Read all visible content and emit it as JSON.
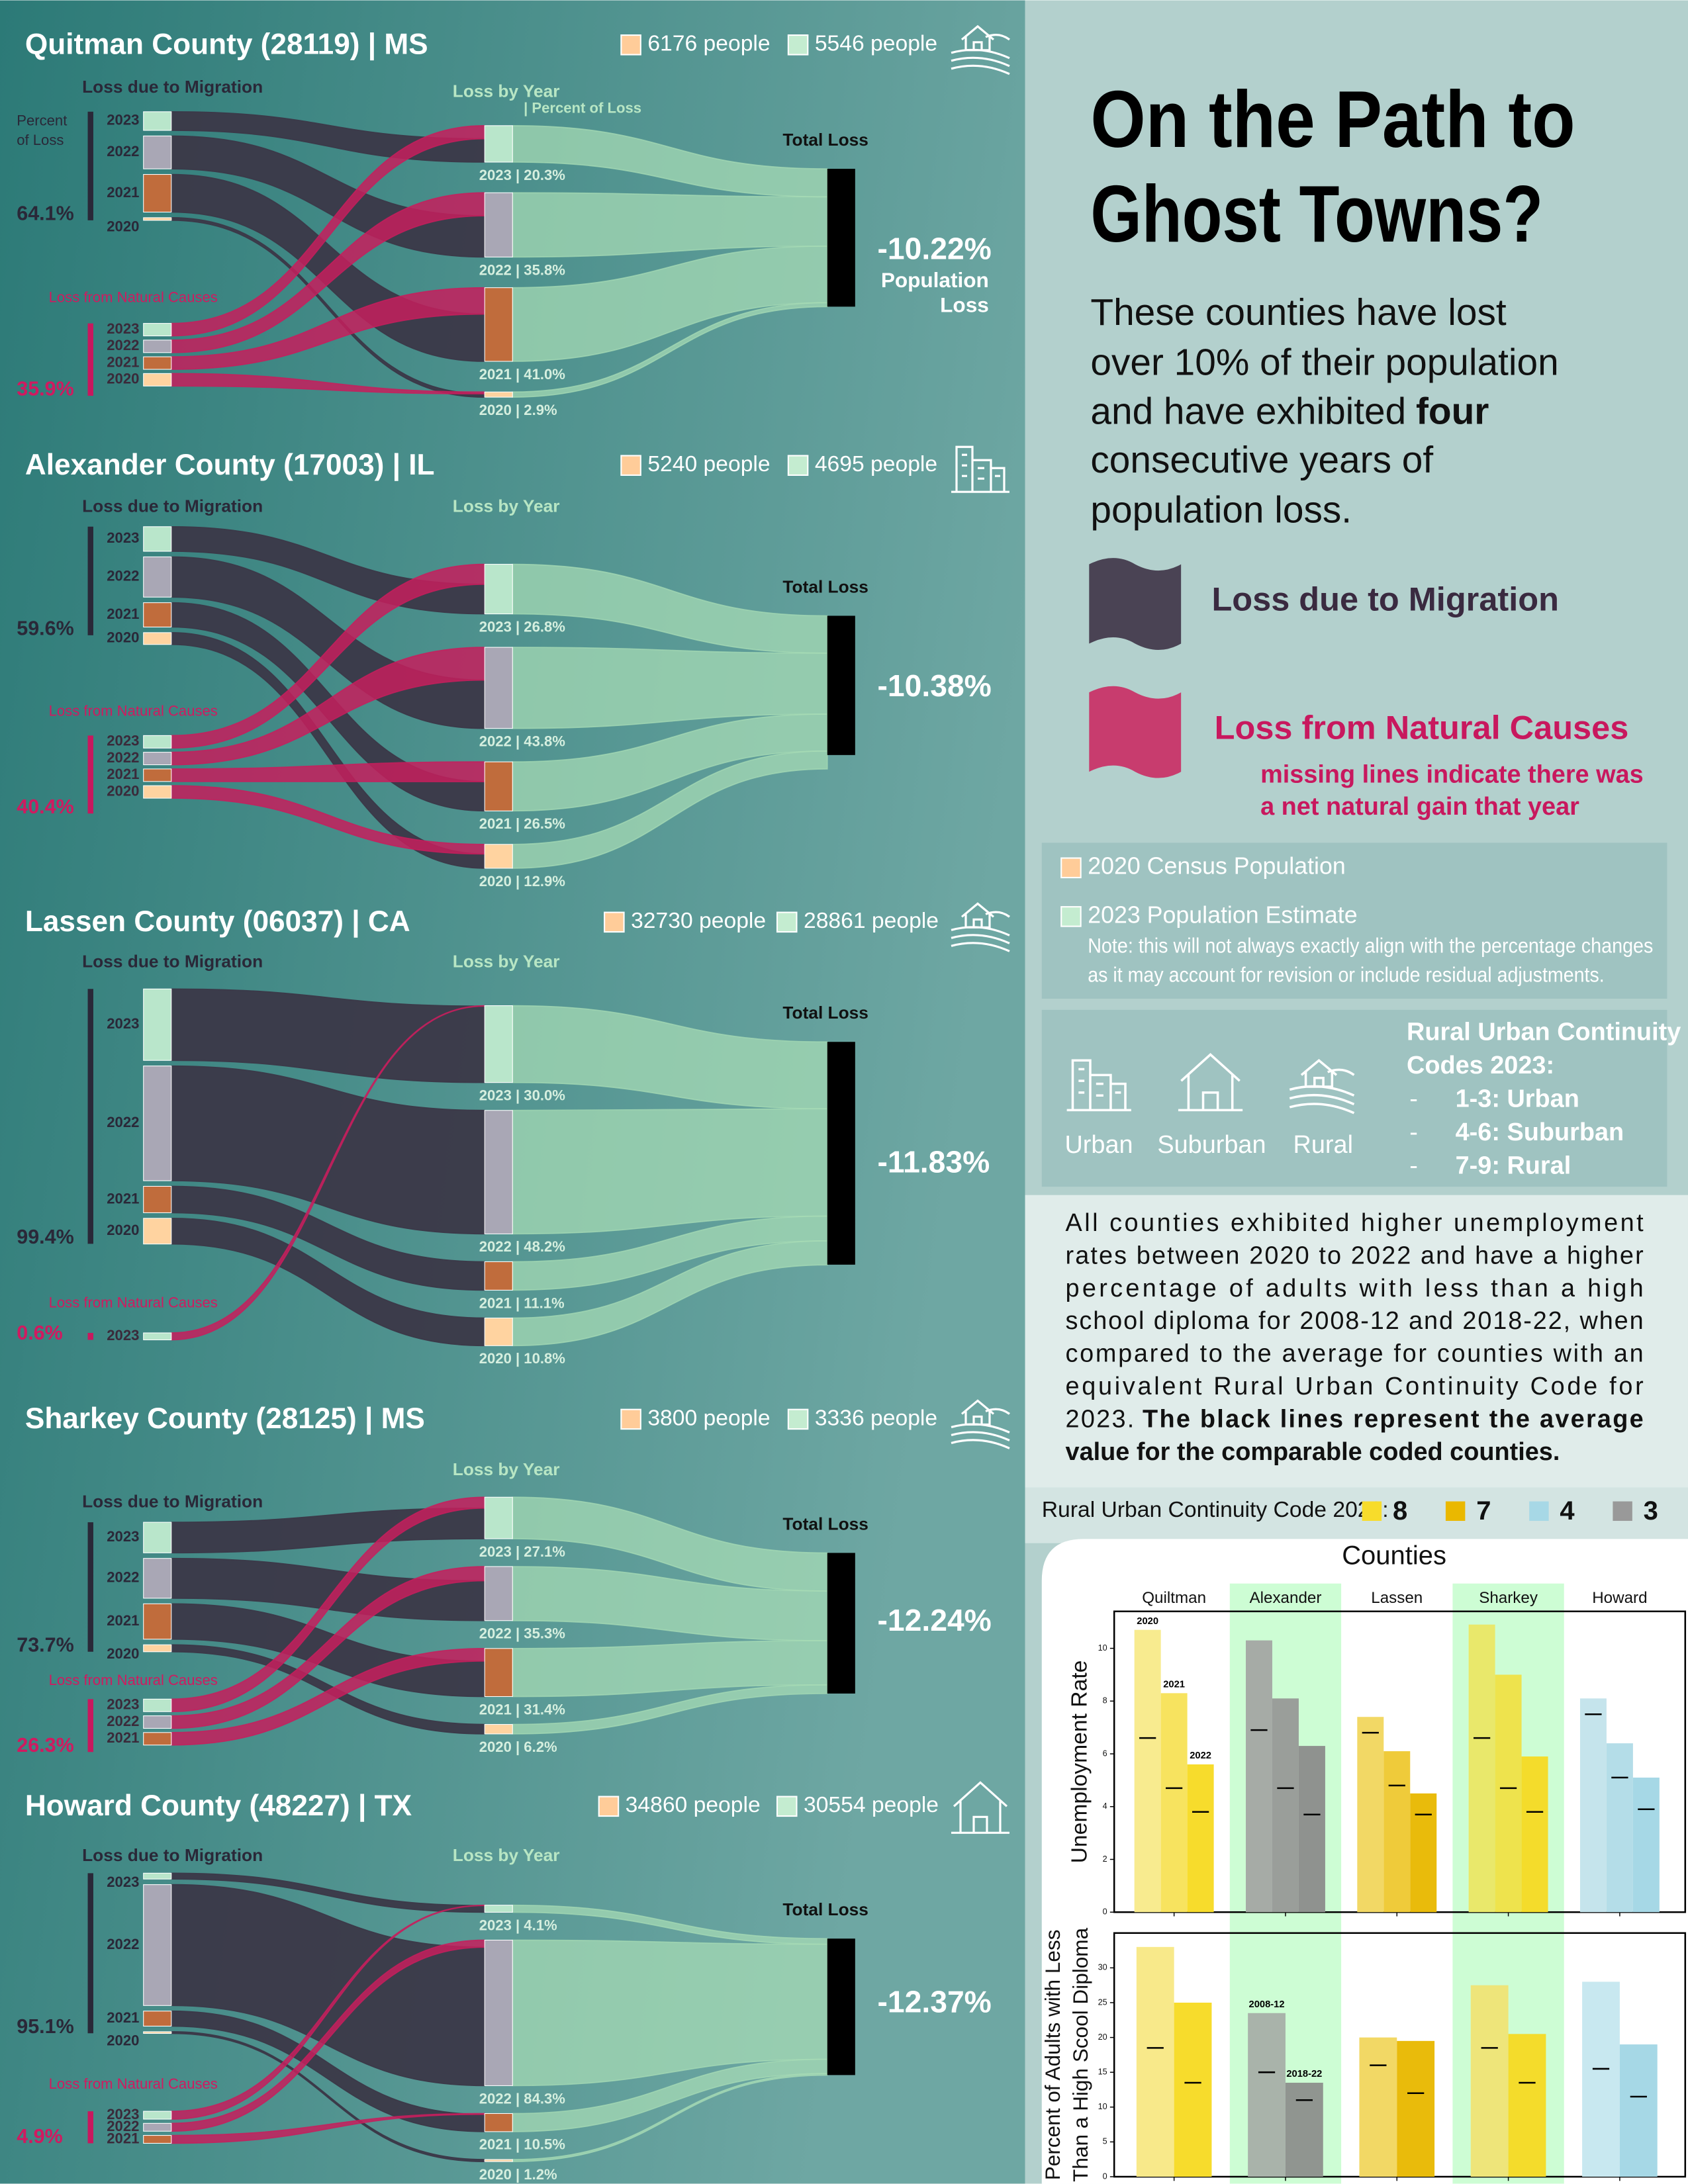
{
  "title_lines": [
    "On the Path to",
    "Ghost Towns?"
  ],
  "intro": {
    "lines_before": [
      "These counties have lost",
      "over 10% of their population"
    ],
    "line3": "and have exhibited",
    "bold": "four",
    "lines_after": [
      "consecutive years of",
      "population loss."
    ]
  },
  "legend": {
    "migration": "Loss due to Migration",
    "natural": "Loss from Natural Causes",
    "note_lines": [
      "missing lines indicate there was",
      "a net natural gain that year"
    ]
  },
  "population_key": {
    "census": "2020 Census Population",
    "estimate": "2023 Population Estimate",
    "note_lines": [
      "Note: this will not always exactly align with the percentage changes",
      "as it may account for revision or include residual adjustments."
    ]
  },
  "codes_key": {
    "icons": [
      "Urban",
      "Suburban",
      "Rural"
    ],
    "heading_lines": [
      "Rural Urban Continuity",
      "Codes 2023:"
    ],
    "bullet": "-",
    "items": [
      "1-3: Urban",
      "4-6: Suburban",
      "7-9: Rural"
    ]
  },
  "paragraph": {
    "lines": [
      "All counties exhibited higher unemployment",
      "rates between 2020 to 2022 and have a higher",
      "percentage of adults with less than a high",
      "school diploma for 2008-12 and 2018-22, when",
      "compared to the average for counties with an",
      "equivalent Rural Urban Continuity Code for"
    ],
    "line7": "2023.",
    "bold_lines": [
      "The black lines represent the average",
      "value for the comparable coded counties."
    ]
  },
  "sankey_labels": {
    "migration": "Loss due to Migration",
    "natural": "Loss from Natural Causes",
    "by_year": "Loss by Year",
    "by_year_note": "| Percent of Loss",
    "percent_of_loss": [
      "Percent",
      "of Loss"
    ],
    "total": "Total Loss",
    "total_note": [
      "Population",
      "Loss"
    ]
  },
  "counties": [
    {
      "name": "Quitman County (28119) | MS",
      "population_labels": [
        "6176 people",
        "5546 people"
      ],
      "migration": 64.1,
      "migration_label": "64.1%",
      "natural": 35.9,
      "natural_label": "35.9%",
      "migration_years": [
        "2023",
        "2022",
        "2021",
        "2020"
      ],
      "natural_years": [
        "2023",
        "2022",
        "2021",
        "2020"
      ],
      "years": {
        "values": [
          20.3,
          35.8,
          41.0,
          2.9
        ],
        "value_labels": [
          "2023 | 20.3%",
          "2022 | 35.8%",
          "2021 | 41.0%",
          "2020 | 2.9%"
        ]
      },
      "total": -10.22,
      "total_label": "-10.22%"
    },
    {
      "name": "Alexander County (17003) | IL",
      "population_labels": [
        "5240 people",
        "4695 people"
      ],
      "migration": 59.6,
      "migration_label": "59.6%",
      "natural": 40.4,
      "natural_label": "40.4%",
      "migration_years": [
        "2023",
        "2022",
        "2021",
        "2020"
      ],
      "natural_years": [
        "2023",
        "2022",
        "2021",
        "2020"
      ],
      "years": {
        "values": [
          26.8,
          43.8,
          26.5,
          12.9
        ],
        "value_labels": [
          "2023 | 26.8%",
          "2022 | 43.8%",
          "2021 | 26.5%",
          "2020 | 12.9%"
        ]
      },
      "total": -10.38,
      "total_label": "-10.38%"
    },
    {
      "name": "Lassen County (06037) | CA",
      "population_labels": [
        "32730 people",
        "28861 people"
      ],
      "migration": 99.4,
      "migration_label": "99.4%",
      "natural": 0.6,
      "natural_label": "0.6%",
      "migration_years": [
        "2023",
        "2022",
        "2021",
        "2020"
      ],
      "natural_years": [
        "2023"
      ],
      "years": {
        "values": [
          30.0,
          48.2,
          11.1,
          10.8
        ],
        "value_labels": [
          "2023 | 30.0%",
          "2022 | 48.2%",
          "2021 | 11.1%",
          "2020 | 10.8%"
        ]
      },
      "total": -11.83,
      "total_label": "-11.83%"
    },
    {
      "name": "Sharkey County (28125) | MS",
      "population_labels": [
        "3800 people",
        "3336 people"
      ],
      "migration": 73.7,
      "migration_label": "73.7%",
      "natural": 26.3,
      "natural_label": "26.3%",
      "migration_years": [
        "2023",
        "2022",
        "2021",
        "2020"
      ],
      "natural_years": [
        "2023",
        "2022",
        "2021"
      ],
      "years": {
        "values": [
          27.1,
          35.3,
          31.4,
          6.2
        ],
        "value_labels": [
          "2023 | 27.1%",
          "2022 | 35.3%",
          "2021 | 31.4%",
          "2020 | 6.2%"
        ]
      },
      "total": -12.24,
      "total_label": "-12.24%"
    },
    {
      "name": "Howard County (48227) | TX",
      "population_labels": [
        "34860 people",
        "30554 people"
      ],
      "migration": 95.1,
      "migration_label": "95.1%",
      "natural": 4.9,
      "natural_label": "4.9%",
      "migration_years": [
        "2023",
        "2022",
        "2021",
        "2020"
      ],
      "natural_years": [
        "2023",
        "2022",
        "2021"
      ],
      "years": {
        "values": [
          4.1,
          84.3,
          10.5,
          1.2
        ],
        "value_labels": [
          "2023 | 4.1%",
          "2022 | 84.3%",
          "2021 | 10.5%",
          "2020 | 1.2%"
        ]
      },
      "total": -12.37,
      "total_label": "-12.37%"
    }
  ],
  "chart_data": [
    {
      "type": "bar",
      "title": "Counties",
      "categories": [
        "Quiltman",
        "Alexander",
        "Lassen",
        "Sharkey",
        "Howard"
      ],
      "y_label": "Unemployment Rate",
      "ylim": [
        0,
        11.4
      ],
      "yticks": [
        0,
        2,
        4,
        6,
        8,
        10
      ],
      "series": [
        {
          "name": "2020",
          "values": [
            10.7,
            10.3,
            7.4,
            10.9,
            8.1
          ],
          "averages": [
            6.6,
            6.9,
            6.8,
            6.6,
            7.5
          ]
        },
        {
          "name": "2021",
          "values": [
            8.3,
            8.1,
            6.1,
            9.0,
            6.4
          ],
          "averages": [
            4.7,
            4.7,
            4.8,
            4.7,
            5.1
          ]
        },
        {
          "name": "2022",
          "values": [
            5.6,
            6.3,
            4.5,
            5.9,
            5.1
          ],
          "averages": [
            3.8,
            3.7,
            3.7,
            3.8,
            3.9
          ]
        }
      ],
      "bar_colors": [
        [
          "#f8eb8f",
          "#f7e35f",
          "#f7dc2c"
        ],
        [
          "#a6aba6",
          "#9a9e9a",
          "#8f928f"
        ],
        [
          "#f2d865",
          "#efcb3a",
          "#e9bb0b"
        ],
        [
          "#e9e86b",
          "#eee34d",
          "#f4dc2b"
        ],
        [
          "#c5e4ec",
          "#b4dde8",
          "#a6d8e6"
        ]
      ],
      "highlight": [
        false,
        true,
        false,
        true,
        false
      ],
      "highlight_color": "#cdfdd4",
      "legend": {
        "title": "Rural Urban Continuity Code 2023:",
        "codes": [
          8,
          7,
          4,
          3
        ],
        "colors": [
          "#f7dc2b",
          "#eab800",
          "#a7d8e6",
          "#999999"
        ]
      }
    },
    {
      "type": "bar",
      "y_label": [
        "Percent of Adults with Less",
        "Than a High Scool Diploma"
      ],
      "ylim": [
        0,
        35
      ],
      "yticks": [
        0,
        5,
        10,
        15,
        20,
        25,
        30
      ],
      "series": [
        {
          "name": "2008-12",
          "values": [
            33,
            23.5,
            20,
            27.5,
            28
          ],
          "averages": [
            18.5,
            15,
            16,
            18.5,
            15.5
          ]
        },
        {
          "name": "2018-22",
          "values": [
            25,
            13.5,
            19.5,
            20.5,
            19
          ],
          "averages": [
            13.5,
            11,
            12,
            13.5,
            11.5
          ]
        }
      ],
      "bar_colors": [
        [
          "#f8e98a",
          "#f7dc2c"
        ],
        [
          "#a9b3aa",
          "#909590"
        ],
        [
          "#f2d865",
          "#e9bb0b"
        ],
        [
          "#eee57a",
          "#f4dc2b"
        ],
        [
          "#c8e8f0",
          "#a6d8e6"
        ]
      ]
    }
  ]
}
